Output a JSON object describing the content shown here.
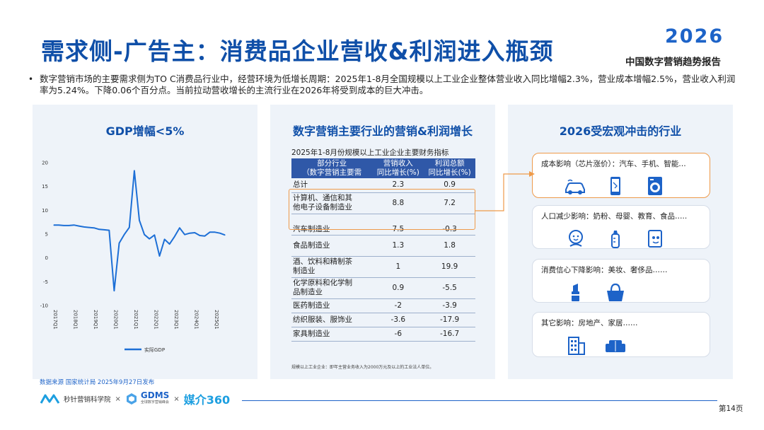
{
  "header": {
    "title": "需求侧-广告主：消费品企业营收&利润进入瓶颈",
    "brand_year": "2026",
    "brand_subtitle": "中国数字营销趋势报告"
  },
  "bullet": "数字营销市场的主要需求侧为TO C消费品行业中，经营环境为低增长周期：2025年1-8月全国规模以上工业企业整体营业收入同比增幅2.3%，营业成本增幅2.5%，营业收入利润率为5.24%。下降0.06个百分点。当前拉动营收增长的主流行业在2026年将受到成本的巨大冲击。",
  "panels": {
    "gdp_title": "GDP增幅<5%",
    "table_title": "数字营销主要行业的营销&利润增长",
    "impact_title": "2026受宏观冲击的行业"
  },
  "chart_data": {
    "type": "line",
    "title": "",
    "x": [
      "2017Q1",
      "2017Q2",
      "2017Q3",
      "2017Q4",
      "2018Q1",
      "2018Q2",
      "2018Q3",
      "2018Q4",
      "2019Q1",
      "2019Q2",
      "2019Q3",
      "2019Q4",
      "2020Q1",
      "2020Q2",
      "2020Q3",
      "2020Q4",
      "2021Q1",
      "2021Q2",
      "2021Q3",
      "2021Q4",
      "2022Q1",
      "2022Q2",
      "2022Q3",
      "2022Q4",
      "2023Q1",
      "2023Q2",
      "2023Q3",
      "2023Q4",
      "2024Q1",
      "2024Q2",
      "2024Q3",
      "2024Q4",
      "2025Q1",
      "2025Q2",
      "2025Q3"
    ],
    "tick_labels": [
      "2017Q1",
      "2018Q1",
      "2019Q1",
      "2020Q1",
      "2021Q1",
      "2022Q1",
      "2023Q1",
      "2024Q1",
      "2025Q1"
    ],
    "series": [
      {
        "name": "实际GDP",
        "values": [
          6.9,
          6.9,
          6.8,
          6.8,
          6.9,
          6.7,
          6.5,
          6.4,
          6.3,
          6.0,
          5.9,
          5.8,
          -6.9,
          3.1,
          4.9,
          6.4,
          18.3,
          7.9,
          4.9,
          4.0,
          4.8,
          0.4,
          3.9,
          2.9,
          4.5,
          6.3,
          4.9,
          5.2,
          5.3,
          4.7,
          4.6,
          5.4,
          5.4,
          5.2,
          4.8
        ]
      }
    ],
    "yticks": [
      20,
      15,
      10,
      5,
      0,
      -5,
      -10
    ],
    "ylim": [
      -10,
      20
    ],
    "grid": false,
    "legend": "bottom",
    "color": "#1d6fd6"
  },
  "table": {
    "caption": "2025年1-8月份规模以上工业企业主要财务指标",
    "headers": [
      [
        "部分行业",
        "（数字营销主要需"
      ],
      [
        "营销收入",
        "同比增长(%)"
      ],
      [
        "利润总额",
        "同比增长(%)"
      ]
    ],
    "rows": [
      {
        "name": [
          "总计"
        ],
        "rev": "2.3",
        "profit": "0.9"
      },
      {
        "name": [
          "计算机、通信和其",
          "他电子设备制造业"
        ],
        "rev": "8.8",
        "profit": "7.2"
      },
      {
        "name": [
          "汽车制造业"
        ],
        "rev": "7.5",
        "profit": "-0.3"
      },
      {
        "name": [
          "食品制造业"
        ],
        "rev": "1.3",
        "profit": "1.8"
      },
      {
        "name": [
          "酒、饮料和精制茶",
          "制造业"
        ],
        "rev": "1",
        "profit": "19.9"
      },
      {
        "name": [
          "化学原料和化学制",
          "品制造业"
        ],
        "rev": "0.9",
        "profit": "-5.5"
      },
      {
        "name": [
          "医药制造业"
        ],
        "rev": "-2",
        "profit": "-3.9"
      },
      {
        "name": [
          "纺织服装、服饰业"
        ],
        "rev": "-3.6",
        "profit": "-17.9"
      },
      {
        "name": [
          "家具制造业"
        ],
        "rev": "-6",
        "profit": "-16.7"
      }
    ],
    "note": "规模以上工业企业：即年主营业务收入为2000万元及以上的工业法人单位。"
  },
  "impacts": [
    {
      "label": "成本影响（芯片涨价）：汽车、手机、智能…",
      "icons": [
        "car-icon",
        "phone-icon",
        "washing-machine-icon"
      ]
    },
    {
      "label": "人口减少影响：奶粉、母婴、教育、食品…..",
      "icons": [
        "baby-icon",
        "baby-bottle-icon",
        "book-icon"
      ]
    },
    {
      "label": "消费信心下降影响：美妆、奢侈品……",
      "icons": [
        "lipstick-icon",
        "handbag-icon"
      ]
    },
    {
      "label": "其它影响：房地产、家居……",
      "icons": [
        "building-icon",
        "sofa-icon"
      ]
    }
  ],
  "source": "数据来源   国家统计局  2025年9月27日发布",
  "footer": {
    "org1": "秒针营销科学院",
    "x": "×",
    "org2_main": "GDMS",
    "org2_sub": "全球数字营销峰会",
    "org3": "媒介360",
    "page": "第14页"
  },
  "colors": {
    "accent": "#0f4fa8",
    "line": "#1d6fd6",
    "highlight": "#ee9a4a",
    "table_header": "#2f58a8"
  }
}
